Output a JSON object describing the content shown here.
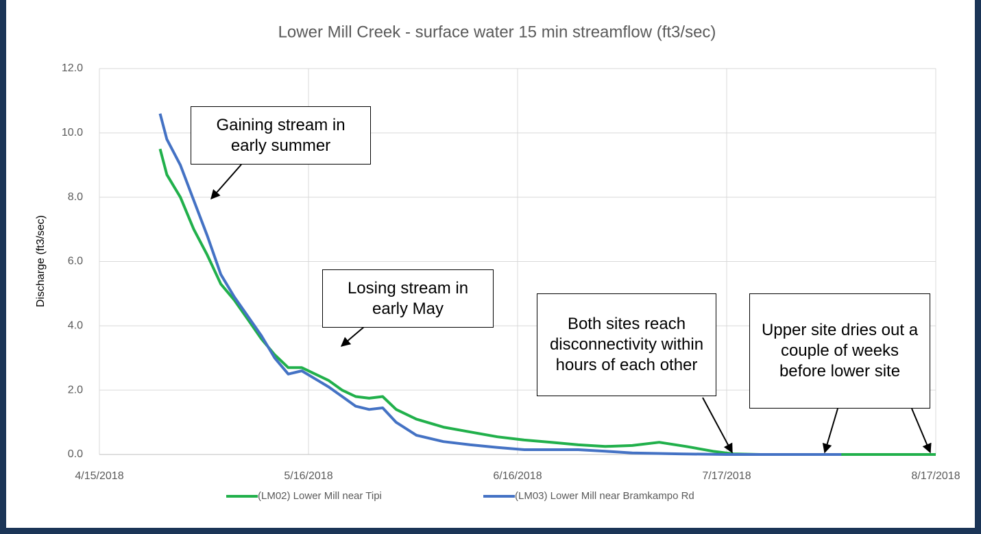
{
  "chart_data": {
    "type": "line",
    "title": "Lower Mill Creek - surface water 15 min streamflow (ft3/sec)",
    "y_label": "Discharge (ft3/sec)",
    "xlim": [
      "2018-04-15",
      "2018-08-17"
    ],
    "xticks": [
      {
        "value": "2018-04-15",
        "label": "4/15/2018"
      },
      {
        "value": "2018-05-16",
        "label": "5/16/2018"
      },
      {
        "value": "2018-06-16",
        "label": "6/16/2018"
      },
      {
        "value": "2018-07-17",
        "label": "7/17/2018"
      },
      {
        "value": "2018-08-17",
        "label": "8/17/2018"
      }
    ],
    "ylim": [
      0,
      12
    ],
    "yticks": [
      {
        "value": 0,
        "label": "0.0"
      },
      {
        "value": 2,
        "label": "2.0"
      },
      {
        "value": 4,
        "label": "4.0"
      },
      {
        "value": 6,
        "label": "6.0"
      },
      {
        "value": 8,
        "label": "8.0"
      },
      {
        "value": 10,
        "label": "10.0"
      },
      {
        "value": 12,
        "label": "12.0"
      }
    ],
    "grid": true,
    "legend": "bottom",
    "series": [
      {
        "name": "(LM02) Lower Mill near Tipi",
        "color": "#21b04b",
        "x": [
          "2018-04-24",
          "2018-04-25",
          "2018-04-27",
          "2018-04-29",
          "2018-05-01",
          "2018-05-03",
          "2018-05-05",
          "2018-05-07",
          "2018-05-09",
          "2018-05-11",
          "2018-05-13",
          "2018-05-15",
          "2018-05-17",
          "2018-05-19",
          "2018-05-21",
          "2018-05-23",
          "2018-05-25",
          "2018-05-27",
          "2018-05-29",
          "2018-06-01",
          "2018-06-05",
          "2018-06-09",
          "2018-06-13",
          "2018-06-17",
          "2018-06-21",
          "2018-06-25",
          "2018-06-29",
          "2018-07-03",
          "2018-07-07",
          "2018-07-11",
          "2018-07-15",
          "2018-07-18",
          "2018-07-22",
          "2018-08-17"
        ],
        "values": [
          9.5,
          8.7,
          8.0,
          7.0,
          6.2,
          5.3,
          4.8,
          4.2,
          3.6,
          3.1,
          2.7,
          2.7,
          2.5,
          2.3,
          2.0,
          1.8,
          1.75,
          1.8,
          1.4,
          1.1,
          0.85,
          0.7,
          0.55,
          0.45,
          0.38,
          0.3,
          0.25,
          0.28,
          0.38,
          0.25,
          0.1,
          0.02,
          0.0,
          0.0
        ]
      },
      {
        "name": "(LM03) Lower Mill near Bramkampo Rd",
        "color": "#4472c4",
        "x": [
          "2018-04-24",
          "2018-04-25",
          "2018-04-27",
          "2018-04-29",
          "2018-05-01",
          "2018-05-03",
          "2018-05-05",
          "2018-05-07",
          "2018-05-09",
          "2018-05-11",
          "2018-05-13",
          "2018-05-15",
          "2018-05-17",
          "2018-05-19",
          "2018-05-21",
          "2018-05-23",
          "2018-05-25",
          "2018-05-27",
          "2018-05-29",
          "2018-06-01",
          "2018-06-05",
          "2018-06-09",
          "2018-06-13",
          "2018-06-17",
          "2018-06-21",
          "2018-06-25",
          "2018-06-29",
          "2018-07-03",
          "2018-07-10",
          "2018-07-17",
          "2018-08-03"
        ],
        "values": [
          10.6,
          9.8,
          9.0,
          7.9,
          6.8,
          5.6,
          4.9,
          4.3,
          3.7,
          3.0,
          2.5,
          2.6,
          2.35,
          2.1,
          1.8,
          1.5,
          1.4,
          1.45,
          1.0,
          0.6,
          0.4,
          0.3,
          0.22,
          0.15,
          0.15,
          0.15,
          0.1,
          0.05,
          0.02,
          0.0,
          0.0
        ]
      }
    ],
    "annotations": [
      "Gaining stream in early summer",
      "Losing stream in early May",
      "Both sites reach disconnectivity within hours of each other",
      "Upper site dries out a couple of weeks before lower site"
    ]
  }
}
